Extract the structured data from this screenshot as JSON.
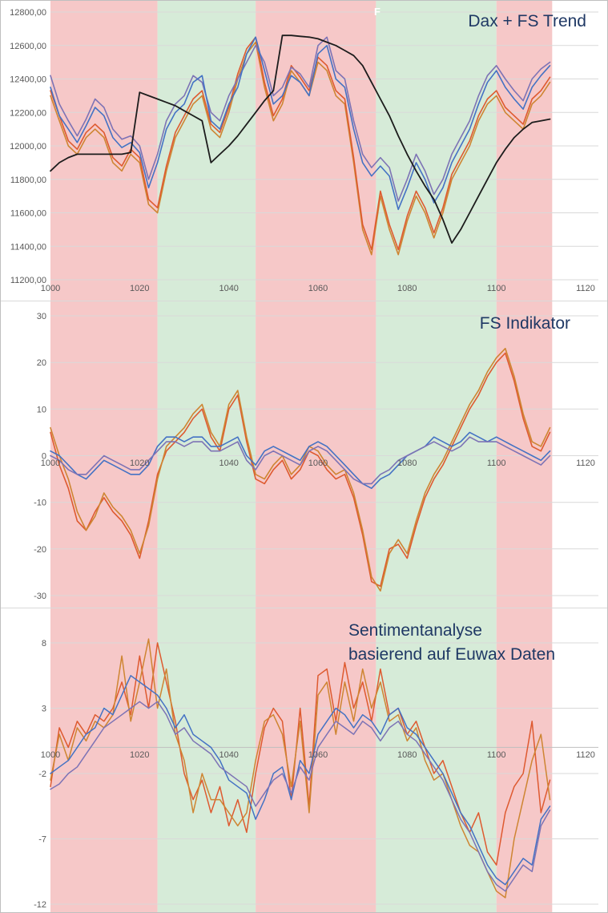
{
  "band_colors": {
    "red": "#F6C8C8",
    "green": "#D6EBD8"
  },
  "background_bands": [
    {
      "from": 1000,
      "to": 1024,
      "color": "red"
    },
    {
      "from": 1024,
      "to": 1046,
      "color": "green"
    },
    {
      "from": 1046,
      "to": 1073,
      "color": "red"
    },
    {
      "from": 1073,
      "to": 1100,
      "color": "green"
    },
    {
      "from": 1100,
      "to": 1112.5,
      "color": "red"
    }
  ],
  "chart_data": [
    {
      "type": "line",
      "title": "Dax + FS Trend",
      "stray_label": "F",
      "legend_position": "none",
      "grid": true,
      "x_start": 1000,
      "x_step": 2,
      "xlim": [
        1000,
        1122
      ],
      "ylim": [
        11200,
        12800
      ],
      "x_ticks": [
        1000,
        1020,
        1040,
        1060,
        1080,
        1100,
        1120
      ],
      "x_tick_labels": [
        "1000",
        "1020",
        "1040",
        "1060",
        "1080",
        "1100",
        "1120"
      ],
      "y_ticks": [
        12800,
        12600,
        12400,
        12200,
        12000,
        11800,
        11600,
        11400,
        11200
      ],
      "y_tick_labels": [
        "12800,00",
        "12600,00",
        "12400,00",
        "12200,00",
        "12000,00",
        "11800,00",
        "11600,00",
        "11400,00",
        "11200,00"
      ],
      "series": [
        {
          "name": "fs_orange",
          "color": "#CE8532",
          "width": 1.6,
          "values": [
            12300,
            12150,
            12000,
            11950,
            12050,
            12100,
            12050,
            11900,
            11850,
            11950,
            11900,
            11650,
            11600,
            11850,
            12050,
            12150,
            12250,
            12300,
            12100,
            12050,
            12200,
            12400,
            12550,
            12620,
            12350,
            12150,
            12250,
            12450,
            12380,
            12300,
            12500,
            12450,
            12300,
            12250,
            11900,
            11500,
            11350,
            11700,
            11500,
            11350,
            11550,
            11700,
            11600,
            11450,
            11600,
            11800,
            11900,
            12000,
            12150,
            12250,
            12300,
            12200,
            12150,
            12100,
            12250,
            12300,
            12380
          ]
        },
        {
          "name": "fs_red",
          "color": "#DE5A30",
          "width": 1.6,
          "values": [
            12330,
            12180,
            12030,
            11980,
            12080,
            12130,
            12080,
            11930,
            11880,
            11980,
            11930,
            11680,
            11630,
            11880,
            12080,
            12180,
            12280,
            12330,
            12130,
            12080,
            12230,
            12430,
            12580,
            12650,
            12380,
            12180,
            12280,
            12480,
            12410,
            12330,
            12530,
            12480,
            12330,
            12280,
            11930,
            11530,
            11380,
            11730,
            11530,
            11380,
            11580,
            11730,
            11630,
            11480,
            11630,
            11830,
            11930,
            12030,
            12180,
            12280,
            12330,
            12230,
            12180,
            12130,
            12280,
            12330,
            12410
          ]
        },
        {
          "name": "dax_purple",
          "color": "#7D73B5",
          "width": 1.6,
          "values": [
            12420,
            12250,
            12150,
            12060,
            12160,
            12280,
            12230,
            12100,
            12040,
            12060,
            12000,
            11800,
            11950,
            12150,
            12250,
            12300,
            12420,
            12380,
            12200,
            12150,
            12300,
            12400,
            12500,
            12600,
            12500,
            12300,
            12350,
            12470,
            12430,
            12350,
            12600,
            12650,
            12450,
            12400,
            12150,
            11950,
            11870,
            11930,
            11870,
            11670,
            11800,
            11950,
            11850,
            11710,
            11800,
            11950,
            12050,
            12150,
            12300,
            12420,
            12480,
            12400,
            12330,
            12270,
            12400,
            12460,
            12500
          ]
        },
        {
          "name": "dax_blue",
          "color": "#4472C4",
          "width": 1.6,
          "values": [
            12350,
            12180,
            12100,
            12020,
            12120,
            12230,
            12180,
            12050,
            11990,
            12020,
            11960,
            11750,
            11900,
            12100,
            12200,
            12250,
            12380,
            12420,
            12150,
            12100,
            12250,
            12350,
            12550,
            12650,
            12450,
            12250,
            12300,
            12420,
            12380,
            12300,
            12550,
            12600,
            12400,
            12350,
            12100,
            11900,
            11820,
            11880,
            11820,
            11620,
            11750,
            11900,
            11800,
            11660,
            11750,
            11900,
            12000,
            12100,
            12250,
            12380,
            12450,
            12350,
            12280,
            12220,
            12350,
            12420,
            12480
          ]
        },
        {
          "name": "fs_trend_black",
          "color": "#1C1C1C",
          "width": 1.8,
          "values": [
            11850,
            11900,
            11930,
            11950,
            11950,
            11950,
            11950,
            11950,
            11950,
            11960,
            12320,
            12300,
            12280,
            12260,
            12240,
            12210,
            12180,
            12150,
            11900,
            11950,
            12000,
            12060,
            12130,
            12200,
            12270,
            12330,
            12660,
            12660,
            12655,
            12650,
            12640,
            12620,
            12600,
            12570,
            12540,
            12480,
            12380,
            12280,
            12180,
            12060,
            11950,
            11850,
            11760,
            11680,
            11560,
            11420,
            11500,
            11600,
            11700,
            11800,
            11900,
            11980,
            12050,
            12100,
            12140,
            12150,
            12160
          ]
        }
      ]
    },
    {
      "type": "line",
      "title": "FS Indikator",
      "legend_position": "none",
      "grid": true,
      "x_start": 1000,
      "x_step": 2,
      "xlim": [
        1000,
        1122
      ],
      "ylim": [
        -30,
        30
      ],
      "x_ticks": [
        1000,
        1020,
        1040,
        1060,
        1080,
        1100,
        1120
      ],
      "x_tick_labels": [
        "1000",
        "1020",
        "1040",
        "1060",
        "1080",
        "1100",
        "1120"
      ],
      "y_ticks": [
        30,
        20,
        10,
        0,
        -10,
        -20,
        -30
      ],
      "y_tick_labels": [
        "30",
        "20",
        "10",
        "0",
        "-10",
        "-20",
        "-30"
      ],
      "series": [
        {
          "name": "indicator_red",
          "color": "#DE5A30",
          "width": 1.6,
          "values": [
            5,
            -2,
            -7,
            -14,
            -16,
            -12,
            -9,
            -12,
            -14,
            -17,
            -22,
            -14,
            -4,
            1,
            3,
            5,
            8,
            10,
            4,
            1,
            10,
            13,
            3,
            -5,
            -6,
            -3,
            -1,
            -5,
            -3,
            1,
            0,
            -3,
            -5,
            -4,
            -9,
            -17,
            -27,
            -28,
            -20,
            -19,
            -22,
            -15,
            -9,
            -5,
            -2,
            2,
            6,
            10,
            13,
            17,
            20,
            22,
            16,
            8,
            2,
            1,
            5
          ]
        },
        {
          "name": "indicator_orange",
          "color": "#CE8532",
          "width": 1.6,
          "values": [
            6,
            0,
            -5,
            -12,
            -16,
            -13,
            -8,
            -11,
            -13,
            -16,
            -21,
            -15,
            -5,
            2,
            4,
            6,
            9,
            11,
            5,
            2,
            11,
            14,
            4,
            -4,
            -5,
            -2,
            0,
            -4,
            -2,
            2,
            1,
            -2,
            -4,
            -3,
            -8,
            -16,
            -26,
            -29,
            -21,
            -18,
            -21,
            -14,
            -8,
            -4,
            -1,
            3,
            7,
            11,
            14,
            18,
            21,
            23,
            17,
            9,
            3,
            2,
            6
          ]
        },
        {
          "name": "indicator_blue",
          "color": "#4472C4",
          "width": 1.6,
          "values": [
            1,
            0,
            -2,
            -4,
            -5,
            -3,
            -1,
            -2,
            -3,
            -4,
            -4,
            -2,
            2,
            4,
            4,
            3,
            4,
            4,
            2,
            2,
            3,
            4,
            0,
            -2,
            1,
            2,
            1,
            0,
            -1,
            2,
            3,
            2,
            0,
            -2,
            -4,
            -6,
            -7,
            -5,
            -4,
            -2,
            0,
            1,
            2,
            4,
            3,
            2,
            3,
            5,
            4,
            3,
            4,
            3,
            2,
            1,
            0,
            -1,
            1
          ]
        },
        {
          "name": "indicator_purple",
          "color": "#7D73B5",
          "width": 1.6,
          "values": [
            0,
            -1,
            -3,
            -4,
            -4,
            -2,
            0,
            -1,
            -2,
            -3,
            -3,
            -1,
            1,
            3,
            3,
            2,
            3,
            3,
            1,
            1,
            2,
            3,
            -1,
            -3,
            0,
            1,
            0,
            -1,
            -2,
            1,
            2,
            1,
            -1,
            -3,
            -5,
            -6,
            -6,
            -4,
            -3,
            -1,
            0,
            1,
            2,
            3,
            2,
            1,
            2,
            4,
            3,
            3,
            3,
            2,
            1,
            0,
            -1,
            -2,
            0
          ]
        }
      ]
    },
    {
      "type": "line",
      "title": "Sentimentanalyse basierend auf Euwax Daten",
      "title_lines": [
        "Sentimentanalyse",
        "basierend auf Euwax Daten"
      ],
      "legend_position": "none",
      "grid": true,
      "x_axis_line": true,
      "x_start": 1000,
      "x_step": 2,
      "xlim": [
        1000,
        1122
      ],
      "ylim": [
        -12,
        8
      ],
      "x_ticks": [
        1000,
        1020,
        1040,
        1060,
        1080,
        1100,
        1120
      ],
      "x_tick_labels": [
        "1000",
        "1020",
        "1040",
        "1060",
        "1080",
        "1100",
        "1120"
      ],
      "y_ticks": [
        8,
        3,
        -2,
        -7,
        -12
      ],
      "y_tick_labels": [
        "8",
        "3",
        "-2",
        "-7",
        "-12"
      ],
      "series": [
        {
          "name": "sentiment_red",
          "color": "#DE5A30",
          "width": 1.5,
          "values": [
            -3,
            1.5,
            0,
            2,
            1,
            2.5,
            2,
            3,
            5,
            2.5,
            7,
            3,
            8,
            5,
            2,
            -2,
            -4,
            -2.5,
            -5,
            -3,
            -6,
            -4,
            -6.5,
            -2,
            1.5,
            3,
            2,
            -4,
            3,
            -4.5,
            5.5,
            6,
            2,
            6.5,
            3,
            5,
            2,
            6,
            2.5,
            3,
            1,
            2,
            0,
            -2,
            -1,
            -3,
            -5,
            -6.5,
            -5,
            -8,
            -9,
            -5,
            -3,
            -2,
            2,
            -5,
            -2.5
          ]
        },
        {
          "name": "sentiment_orange",
          "color": "#CE8532",
          "width": 1.5,
          "values": [
            -2.5,
            1,
            -1,
            1.5,
            0.5,
            2,
            1.5,
            2.5,
            7,
            2,
            5,
            8.3,
            3,
            6,
            1,
            -1,
            -5,
            -2,
            -4,
            -4,
            -5,
            -6,
            -5,
            -1,
            2,
            2.5,
            1,
            -3,
            2,
            -5,
            4,
            5,
            1,
            5,
            2,
            6,
            3,
            5,
            2,
            2.5,
            0.5,
            1.5,
            -1,
            -2.5,
            -2,
            -4,
            -6,
            -7.5,
            -8,
            -9.5,
            -11,
            -11.5,
            -7,
            -4,
            -1,
            1,
            -4
          ]
        },
        {
          "name": "sentiment_blue",
          "color": "#4472C4",
          "width": 1.5,
          "values": [
            -2,
            -1.5,
            -1,
            0,
            1,
            1.5,
            3,
            2.5,
            4,
            5.5,
            5,
            4.5,
            4,
            3,
            1.5,
            2.5,
            1,
            0.5,
            0,
            -1,
            -2.5,
            -3,
            -3.5,
            -5.5,
            -4,
            -2,
            -1.5,
            -4,
            -1,
            -2,
            1,
            2,
            3,
            2.5,
            1.5,
            2.5,
            2,
            1,
            2.5,
            3,
            1.5,
            1,
            0,
            -1,
            -2,
            -3.5,
            -5,
            -6,
            -7.5,
            -9,
            -10,
            -10.5,
            -9.5,
            -8.5,
            -9,
            -5.5,
            -4.5
          ]
        },
        {
          "name": "sentiment_purple",
          "color": "#7D73B5",
          "width": 1.5,
          "values": [
            -3.2,
            -2.8,
            -2,
            -1.5,
            -0.5,
            0.5,
            1.5,
            2,
            2.5,
            3,
            3.5,
            3,
            3.5,
            2.5,
            1,
            1.5,
            0.5,
            0,
            -0.5,
            -1.5,
            -2,
            -2.5,
            -3,
            -4.5,
            -3.5,
            -2.5,
            -2,
            -3.5,
            -1.5,
            -2.5,
            0,
            1,
            2,
            1.5,
            1,
            2,
            1.5,
            0.5,
            1.5,
            2,
            1,
            0.5,
            -0.5,
            -1.5,
            -2.5,
            -4,
            -5.5,
            -6.5,
            -8,
            -9.5,
            -10.5,
            -11,
            -10,
            -9,
            -9.5,
            -6,
            -4.8
          ]
        }
      ]
    }
  ]
}
